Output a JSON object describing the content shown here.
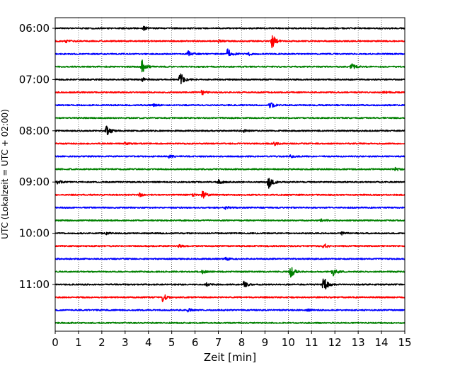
{
  "chart_data": {
    "type": "line",
    "title": "",
    "xlabel": "Zeit  [min]",
    "ylabel": "UTC (Lokalzeit = UTC + 02:00)",
    "xlim": [
      0,
      15
    ],
    "x_ticks": [
      "0",
      "1",
      "2",
      "3",
      "4",
      "5",
      "6",
      "7",
      "8",
      "9",
      "10",
      "11",
      "12",
      "13",
      "14",
      "15"
    ],
    "y_tick_labels": [
      "06:00",
      "07:00",
      "08:00",
      "09:00",
      "10:00",
      "11:00"
    ],
    "row_minutes": 15,
    "start_time": "06:00",
    "grid": {
      "vertical": "dotted",
      "horizontal": false
    },
    "trace_colors": [
      "#000000",
      "#ff0000",
      "#0000ff",
      "#008000"
    ],
    "traces": [
      {
        "time": "06:00",
        "color": "#000000",
        "events": [
          {
            "t": 3.8,
            "amp": 0.3
          }
        ]
      },
      {
        "time": "06:15",
        "color": "#ff0000",
        "events": [
          {
            "t": 0.45,
            "amp": 0.3
          },
          {
            "t": 7.0,
            "amp": 0.3
          },
          {
            "t": 9.3,
            "amp": 1.15
          }
        ]
      },
      {
        "time": "06:30",
        "color": "#0000ff",
        "events": [
          {
            "t": 5.7,
            "amp": 0.45
          },
          {
            "t": 7.4,
            "amp": 1.0
          },
          {
            "t": 8.3,
            "amp": 0.2
          }
        ]
      },
      {
        "time": "06:45",
        "color": "#008000",
        "events": [
          {
            "t": 3.7,
            "amp": 1.4
          },
          {
            "t": 12.7,
            "amp": 0.55
          }
        ]
      },
      {
        "time": "07:00",
        "color": "#000000",
        "events": [
          {
            "t": 5.35,
            "amp": 1.3
          },
          {
            "t": 3.75,
            "amp": 0.3
          }
        ]
      },
      {
        "time": "07:15",
        "color": "#ff0000",
        "events": [
          {
            "t": 6.3,
            "amp": 0.45
          },
          {
            "t": 14.1,
            "amp": 0.2
          }
        ]
      },
      {
        "time": "07:30",
        "color": "#0000ff",
        "events": [
          {
            "t": 9.2,
            "amp": 0.6
          },
          {
            "t": 4.2,
            "amp": 0.2
          }
        ]
      },
      {
        "time": "07:45",
        "color": "#008000",
        "events": []
      },
      {
        "time": "08:00",
        "color": "#000000",
        "events": [
          {
            "t": 2.2,
            "amp": 1.0
          },
          {
            "t": 8.1,
            "amp": 0.2
          }
        ]
      },
      {
        "time": "08:15",
        "color": "#ff0000",
        "events": [
          {
            "t": 9.4,
            "amp": 0.3
          },
          {
            "t": 3.0,
            "amp": 0.2
          }
        ]
      },
      {
        "time": "08:30",
        "color": "#0000ff",
        "events": [
          {
            "t": 4.9,
            "amp": 0.3
          },
          {
            "t": 10.1,
            "amp": 0.2
          }
        ]
      },
      {
        "time": "08:45",
        "color": "#008000",
        "events": [
          {
            "t": 14.6,
            "amp": 0.3
          }
        ]
      },
      {
        "time": "09:00",
        "color": "#000000",
        "events": [
          {
            "t": 9.15,
            "amp": 1.4
          },
          {
            "t": 7.0,
            "amp": 0.4
          },
          {
            "t": 0.1,
            "amp": 0.3
          }
        ]
      },
      {
        "time": "09:15",
        "color": "#ff0000",
        "events": [
          {
            "t": 6.3,
            "amp": 0.75
          },
          {
            "t": 3.6,
            "amp": 0.3
          },
          {
            "t": 5.9,
            "amp": 0.2
          }
        ]
      },
      {
        "time": "09:30",
        "color": "#0000ff",
        "events": [
          {
            "t": 7.3,
            "amp": 0.25
          }
        ]
      },
      {
        "time": "09:45",
        "color": "#008000",
        "events": [
          {
            "t": 11.4,
            "amp": 0.25
          }
        ]
      },
      {
        "time": "10:00",
        "color": "#000000",
        "events": [
          {
            "t": 12.3,
            "amp": 0.2
          },
          {
            "t": 2.2,
            "amp": 0.15
          }
        ]
      },
      {
        "time": "10:15",
        "color": "#ff0000",
        "events": [
          {
            "t": 11.5,
            "amp": 0.5
          },
          {
            "t": 5.3,
            "amp": 0.25
          }
        ]
      },
      {
        "time": "10:30",
        "color": "#0000ff",
        "events": [
          {
            "t": 7.3,
            "amp": 0.3
          }
        ]
      },
      {
        "time": "10:45",
        "color": "#008000",
        "events": [
          {
            "t": 10.1,
            "amp": 1.0
          },
          {
            "t": 11.9,
            "amp": 0.8
          },
          {
            "t": 6.3,
            "amp": 0.3
          }
        ]
      },
      {
        "time": "11:00",
        "color": "#000000",
        "events": [
          {
            "t": 11.5,
            "amp": 1.5
          },
          {
            "t": 8.1,
            "amp": 0.5
          },
          {
            "t": 6.5,
            "amp": 0.25
          }
        ]
      },
      {
        "time": "11:15",
        "color": "#ff0000",
        "events": [
          {
            "t": 4.6,
            "amp": 0.7
          }
        ]
      },
      {
        "time": "11:30",
        "color": "#0000ff",
        "events": [
          {
            "t": 5.7,
            "amp": 0.25
          },
          {
            "t": 10.8,
            "amp": 0.2
          }
        ]
      },
      {
        "time": "11:45",
        "color": "#008000",
        "events": []
      }
    ]
  }
}
